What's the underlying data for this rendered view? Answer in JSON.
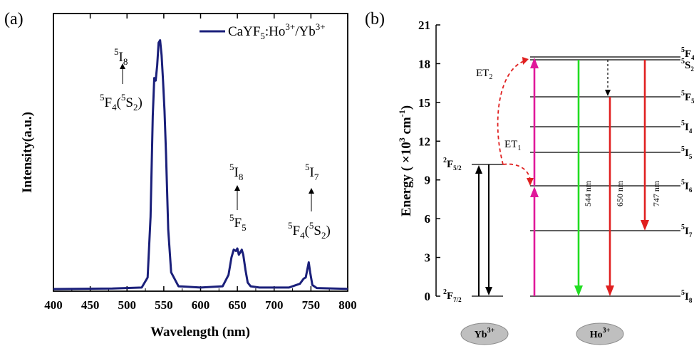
{
  "chart_data": [
    {
      "type": "line",
      "panel_label": "(a)",
      "xlabel": "Wavelength (nm)",
      "ylabel": "Intensity(a.u.)",
      "xlim": [
        400,
        800
      ],
      "x_ticks": [
        400,
        450,
        500,
        550,
        600,
        650,
        700,
        750,
        800
      ],
      "ylim": [
        0,
        1.1
      ],
      "y_ticks_shown": false,
      "grid": false,
      "legend": {
        "placement": "top-right",
        "entries": [
          {
            "name": "CaYF5:Ho3+/Yb3+",
            "color": "#1a1f7a"
          }
        ]
      },
      "series": [
        {
          "name": "CaYF5:Ho3+/Yb3+",
          "color": "#1a1f7a",
          "x": [
            400,
            480,
            520,
            528,
            532,
            535,
            537,
            539,
            541,
            543,
            545,
            547,
            549,
            551,
            553,
            556,
            560,
            570,
            600,
            630,
            638,
            642,
            645,
            648,
            650,
            652,
            654,
            656,
            658,
            661,
            664,
            668,
            680,
            720,
            735,
            740,
            743,
            745,
            747,
            749,
            752,
            758,
            800
          ],
          "y": [
            0.014,
            0.016,
            0.02,
            0.06,
            0.3,
            0.7,
            0.85,
            0.84,
            0.9,
            0.99,
            1.0,
            0.94,
            0.84,
            0.72,
            0.55,
            0.25,
            0.08,
            0.025,
            0.02,
            0.025,
            0.07,
            0.14,
            0.17,
            0.165,
            0.175,
            0.15,
            0.16,
            0.17,
            0.15,
            0.09,
            0.04,
            0.025,
            0.02,
            0.02,
            0.035,
            0.055,
            0.06,
            0.09,
            0.12,
            0.08,
            0.03,
            0.018,
            0.015
          ]
        }
      ],
      "annotations": [
        {
          "x": 537,
          "upper": "5I8",
          "lower": "5F4(5S2)"
        },
        {
          "x": 650,
          "upper": "5I8",
          "lower": "5F5"
        },
        {
          "x": 748,
          "upper": "5I7",
          "lower": "5F4(5S2)"
        }
      ]
    },
    {
      "type": "diagram",
      "panel_label": "(b)",
      "ylabel": "Energy (×10³ cm⁻¹)",
      "ylim": [
        0,
        21
      ],
      "y_ticks": [
        0,
        3,
        6,
        9,
        12,
        15,
        18,
        21
      ],
      "ions": [
        "Yb3+",
        "Ho3+"
      ],
      "yb_levels": [
        {
          "name": "2F7/2",
          "energy": 0
        },
        {
          "name": "2F5/2",
          "energy": 10.2
        }
      ],
      "ho_levels": [
        {
          "name": "5I8",
          "energy": 0
        },
        {
          "name": "5I7",
          "energy": 5.1
        },
        {
          "name": "5I6",
          "energy": 8.6
        },
        {
          "name": "5I5",
          "energy": 11.2
        },
        {
          "name": "5I4",
          "energy": 13.2
        },
        {
          "name": "5F5",
          "energy": 15.5
        },
        {
          "name": "5S2",
          "energy": 18.4
        },
        {
          "name": "5F4",
          "energy": 18.6
        }
      ],
      "energy_transfers": [
        "ET1",
        "ET2"
      ],
      "emissions": [
        {
          "label": "544 nm",
          "from": "5S2/5F4",
          "to": "5I8",
          "color": "#22dd22"
        },
        {
          "label": "650 nm",
          "from": "5F5",
          "to": "5I8",
          "color": "#e02020"
        },
        {
          "label": "747 nm",
          "from": "5S2/5F4",
          "to": "5I7",
          "color": "#e02020"
        }
      ]
    }
  ]
}
